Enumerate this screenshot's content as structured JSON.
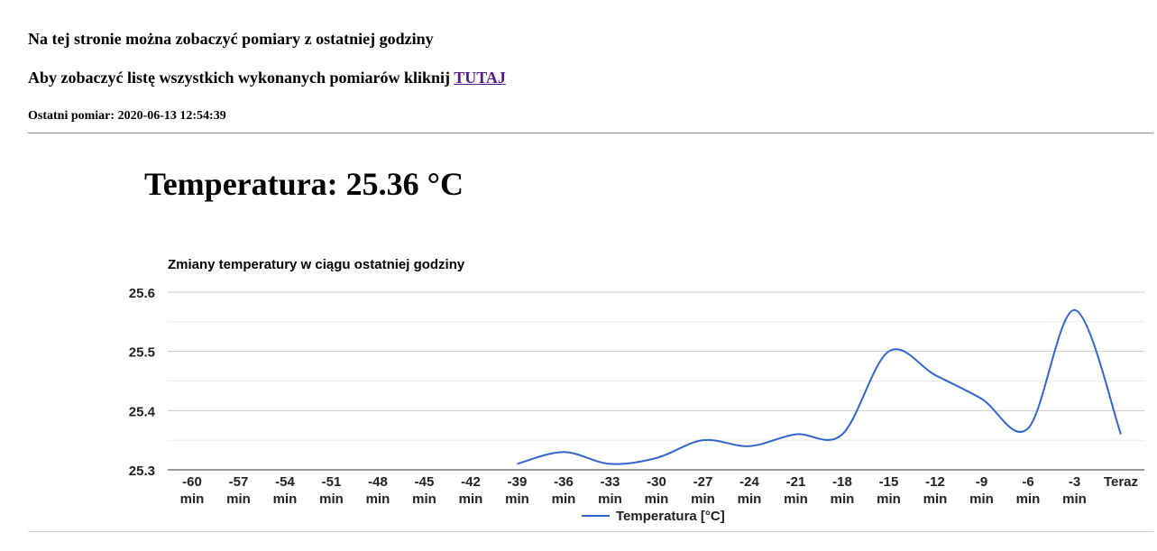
{
  "header": {
    "intro": "Na tej stronie można zobaczyć pomiary z ostatniej godziny",
    "list_prefix": "Aby zobaczyć listę wszystkich wykonanych pomiarów kliknij ",
    "list_link": "TUTAJ",
    "last_label": "Ostatni pomiar:",
    "last_value": "2020-06-13 12:54:39"
  },
  "temperature": {
    "label": "Temperatura:",
    "value": "25.36",
    "unit": "°C"
  },
  "colors": {
    "line": "#3366cc",
    "link": "#551a8b",
    "grid": "#cccccc"
  },
  "chart_data": {
    "type": "line",
    "title": "Zmiany temperatury w ciągu ostatniej godziny",
    "categories": [
      [
        "-60",
        "min"
      ],
      [
        "-57",
        "min"
      ],
      [
        "-54",
        "min"
      ],
      [
        "-51",
        "min"
      ],
      [
        "-48",
        "min"
      ],
      [
        "-45",
        "min"
      ],
      [
        "-42",
        "min"
      ],
      [
        "-39",
        "min"
      ],
      [
        "-36",
        "min"
      ],
      [
        "-33",
        "min"
      ],
      [
        "-30",
        "min"
      ],
      [
        "-27",
        "min"
      ],
      [
        "-24",
        "min"
      ],
      [
        "-21",
        "min"
      ],
      [
        "-18",
        "min"
      ],
      [
        "-15",
        "min"
      ],
      [
        "-12",
        "min"
      ],
      [
        "-9",
        "min"
      ],
      [
        "-6",
        "min"
      ],
      [
        "-3",
        "min"
      ],
      [
        "Teraz"
      ]
    ],
    "series": [
      {
        "name": "Temperatura [°C]",
        "values": [
          null,
          null,
          null,
          null,
          null,
          null,
          null,
          25.31,
          25.33,
          25.31,
          25.32,
          25.35,
          25.34,
          25.36,
          25.36,
          25.5,
          25.46,
          25.42,
          25.37,
          25.57,
          25.36
        ]
      }
    ],
    "ylim": [
      25.3,
      25.6
    ],
    "yticks": [
      "25.3",
      "25.4",
      "25.5",
      "25.6"
    ],
    "grid": true,
    "legend": "bottom"
  }
}
